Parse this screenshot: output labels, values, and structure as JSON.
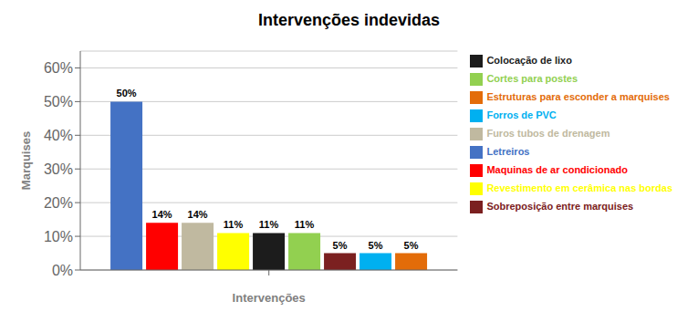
{
  "chart_data": {
    "type": "bar",
    "title": "Intervenções indevidas",
    "x_label": "Intervenções",
    "y_label": "Marquises",
    "categories": [
      null
    ],
    "series": [
      {
        "name": "Letreiros",
        "color": "#4472C4",
        "values": [
          50
        ],
        "value_labels": [
          "50%"
        ]
      },
      {
        "name": "Maquinas de ar condicionado",
        "color": "#FF0000",
        "values": [
          14
        ],
        "value_labels": [
          "14%"
        ]
      },
      {
        "name": "Furos tubos de drenagem",
        "color": "#C0B9A0",
        "values": [
          14
        ],
        "value_labels": [
          "14%"
        ]
      },
      {
        "name": "Revestimento em cerâmica nas bordas",
        "color": "#FFFF00",
        "values": [
          11
        ],
        "value_labels": [
          "11%"
        ]
      },
      {
        "name": "Colocação de lixo",
        "color": "#1C1C1C",
        "values": [
          11
        ],
        "value_labels": [
          "11%"
        ]
      },
      {
        "name": "Cortes para postes",
        "color": "#92D050",
        "values": [
          11
        ],
        "value_labels": [
          "11%"
        ]
      },
      {
        "name": "Sobreposição entre marquises",
        "color": "#7B2020",
        "values": [
          5
        ],
        "value_labels": [
          "5%"
        ]
      },
      {
        "name": "Forros de PVC",
        "color": "#00B0F0",
        "values": [
          5
        ],
        "value_labels": [
          "5%"
        ]
      },
      {
        "name": "Estruturas para esconder a marquises",
        "color": "#E36C09",
        "values": [
          5
        ],
        "value_labels": [
          "5%"
        ]
      }
    ],
    "ylim": [
      0,
      65
    ],
    "yticks": [
      {
        "value": 0,
        "label": "0%"
      },
      {
        "value": 10,
        "label": "10%"
      },
      {
        "value": 20,
        "label": "20%"
      },
      {
        "value": 30,
        "label": "30%"
      },
      {
        "value": 40,
        "label": "40%"
      },
      {
        "value": 50,
        "label": "50%"
      },
      {
        "value": 60,
        "label": "60%"
      }
    ],
    "grid": true,
    "legend": "right",
    "data_labels": true
  }
}
